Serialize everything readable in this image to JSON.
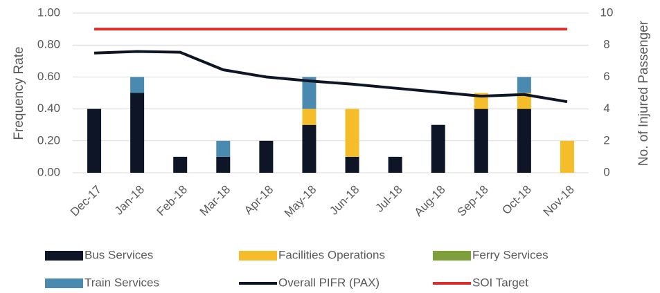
{
  "chart_data": {
    "type": "bar",
    "categories": [
      "Dec-17",
      "Jan-18",
      "Feb-18",
      "Mar-18",
      "Apr-18",
      "May-18",
      "Jun-18",
      "Jul-18",
      "Aug-18",
      "Sep-18",
      "Oct-18",
      "Nov-18"
    ],
    "y_label": "Frequency Rate",
    "y2_label": "No. of Injured Passenger",
    "ylim": [
      0,
      1
    ],
    "yticks": [
      {
        "value": 0,
        "label": "0.00"
      },
      {
        "value": 0.2,
        "label": "0.20"
      },
      {
        "value": 0.4,
        "label": "0.40"
      },
      {
        "value": 0.6,
        "label": "0.60"
      },
      {
        "value": 0.8,
        "label": "0.80"
      },
      {
        "value": 1,
        "label": "1.00"
      }
    ],
    "y2lim": [
      0,
      10
    ],
    "y2ticks": [
      0,
      2,
      4,
      6,
      8,
      10
    ],
    "grid": true,
    "legend": "bottom",
    "series": [
      {
        "name": "Bus Services",
        "type": "bar",
        "axis": "y2",
        "color": "#0d1526",
        "values": [
          4,
          5,
          1,
          1,
          2,
          3,
          1,
          1,
          3,
          4,
          4,
          0
        ]
      },
      {
        "name": "Facilities Operations",
        "type": "bar",
        "axis": "y2",
        "color": "#f6bd2b",
        "values": [
          0,
          0,
          0,
          0,
          0,
          1,
          3,
          0,
          0,
          1,
          1,
          2
        ]
      },
      {
        "name": "Ferry Services",
        "type": "bar",
        "axis": "y2",
        "color": "#7da03d",
        "values": [
          0,
          0,
          0,
          0,
          0,
          0,
          0,
          0,
          0,
          0,
          0,
          0
        ]
      },
      {
        "name": "Train Services",
        "type": "bar",
        "axis": "y2",
        "color": "#4a8ab0",
        "values": [
          0,
          1,
          0,
          1,
          0,
          2,
          0,
          0,
          0,
          0,
          1,
          0
        ]
      },
      {
        "name": "Overall PIFR (PAX)",
        "type": "line",
        "axis": "y",
        "color": "#0d1526",
        "values": [
          0.75,
          0.76,
          0.755,
          0.645,
          0.6,
          0.575,
          0.555,
          0.53,
          0.505,
          0.48,
          0.49,
          0.445
        ]
      },
      {
        "name": "SOI Target",
        "type": "line",
        "axis": "y",
        "color": "#d9302c",
        "values": [
          0.9,
          0.9,
          0.9,
          0.9,
          0.9,
          0.9,
          0.9,
          0.9,
          0.9,
          0.9,
          0.9,
          0.9
        ]
      }
    ]
  }
}
